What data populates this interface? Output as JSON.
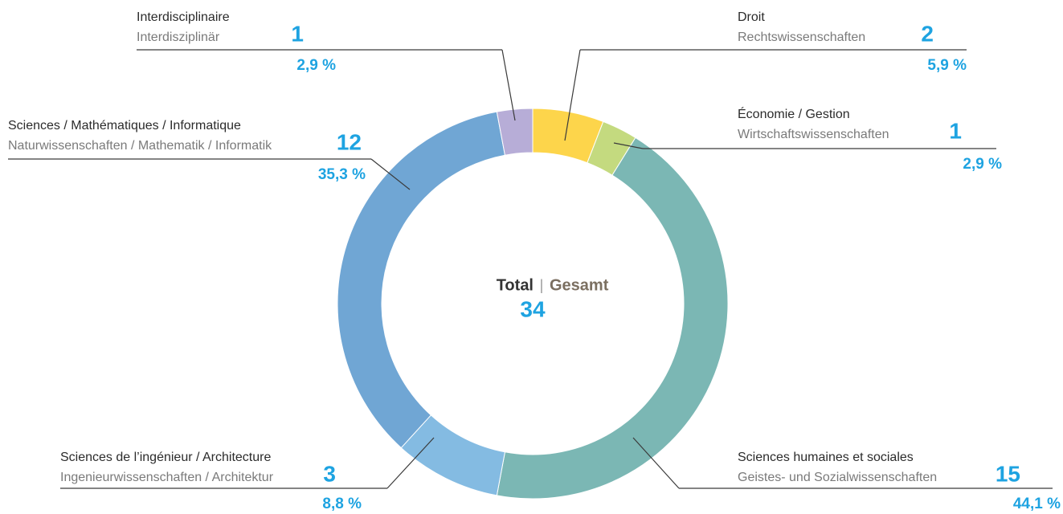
{
  "chart_data": {
    "type": "pie",
    "donut": true,
    "center_label_fr": "Total",
    "separator": "|",
    "center_label_de": "Gesamt",
    "total": 34,
    "categories": [
      "Droit",
      "Économie / Gestion",
      "Sciences humaines et sociales",
      "Sciences de l’ingénieur / Architecture",
      "Sciences / Mathématiques / Informatique",
      "Interdisciplinaire"
    ],
    "categories_de": [
      "Rechtswissenschaften",
      "Wirtschaftswissenschaften",
      "Geistes- und Sozialwissenschaften",
      "Ingenieurwissenschaften / Architektur",
      "Naturwissenschaften / Mathematik / Informatik",
      "Interdisziplinär"
    ],
    "values": [
      2,
      1,
      15,
      3,
      12,
      1
    ],
    "percentages": [
      5.9,
      2.9,
      44.1,
      8.8,
      35.3,
      2.9
    ],
    "percentage_labels": [
      "5,9 %",
      "2,9 %",
      "44,1 %",
      "8,8 %",
      "35,3 %",
      "2,9 %"
    ],
    "colors": [
      "#fdd54b",
      "#c4da7f",
      "#7bb7b4",
      "#84bbe2",
      "#70a6d4",
      "#b7add7"
    ]
  }
}
